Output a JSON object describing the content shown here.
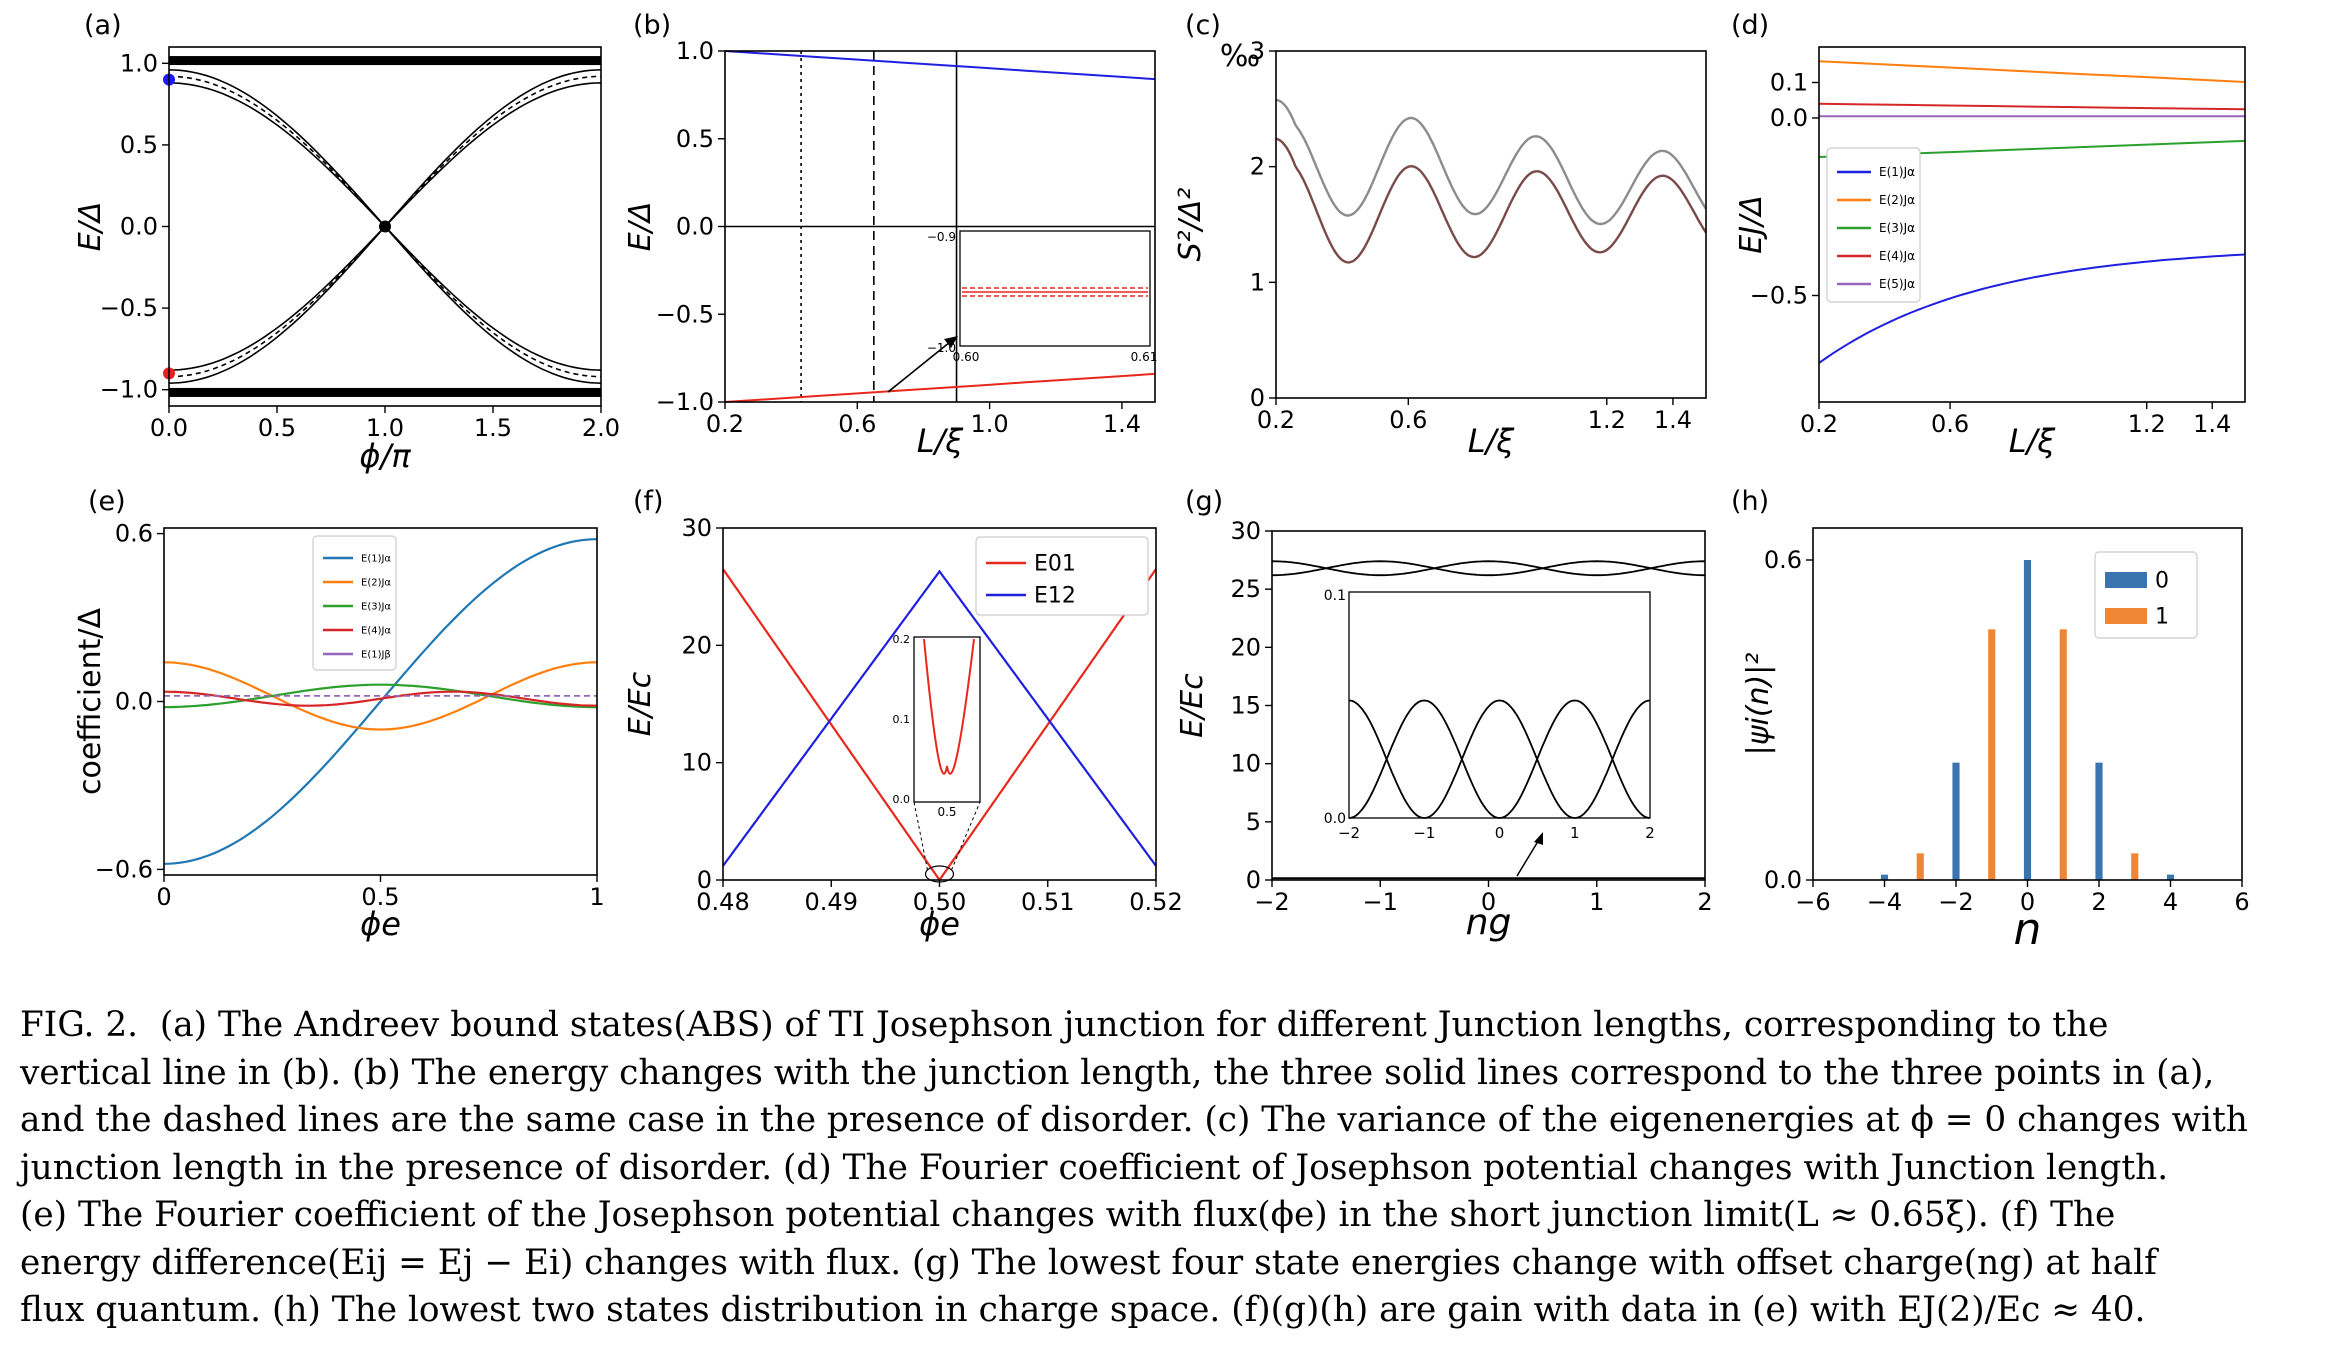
{
  "figure_number": "FIG. 2.",
  "caption_lines": [
    "(a) The Andreev bound states(ABS) of TI Josephson junction for different Junction lengths, corresponding to the",
    "vertical line in (b). (b) The energy changes with the junction length, the three solid lines correspond to the three points in (a),",
    "and the dashed lines are the same case in the presence of disorder. (c) The variance of the eigenenergies at ϕ = 0 changes with",
    "junction length in the presence of disorder. (d) The Fourier coefficient of Josephson potential changes with Junction length.",
    "(e) The Fourier coefficient of the Josephson potential changes with flux(ϕe) in the short junction limit(L ≈ 0.65ξ). (f) The",
    "energy difference(Eij = Ej − Ei) changes with flux. (g) The lowest four state energies change with offset charge(ng) at half",
    "flux quantum. (h) The lowest two states distribution in charge space. (f)(g)(h) are gain with data in (e) with EJ(2)/Ec ≈ 40."
  ],
  "colors": {
    "blue": "#1f1fe0",
    "red": "#e8281c",
    "mpl_blue": "#1f77b4",
    "mpl_orange": "#ff7f0e",
    "mpl_green": "#2ca02c",
    "mpl_red": "#d62728",
    "mpl_purple": "#9467bd",
    "bar_blue": "#3a75b0",
    "bar_orange": "#ef8636",
    "brown": "#7a4a4a",
    "gray": "#8c8c8c"
  },
  "panels": {
    "a": {
      "label": "(a)",
      "xlabel": "ϕ/π",
      "ylabel": "E/Δ",
      "xticks": [
        "0.0",
        "0.5",
        "1.0",
        "1.5",
        "2.0"
      ],
      "yticks": [
        "1.0",
        "0.5",
        "0.0",
        "−0.5",
        "−1.0"
      ]
    },
    "b": {
      "label": "(b)",
      "xlabel": "L/ξ",
      "ylabel": "E/Δ",
      "xticks": [
        "0.2",
        "0.6",
        "1.0",
        "1.4"
      ],
      "yticks": [
        "1.0",
        "0.5",
        "0.0",
        "−0.5",
        "−1.0"
      ],
      "inset_yticks": [
        "−0.9",
        "−1.0"
      ],
      "inset_xticks": [
        "0.60",
        "0.61"
      ]
    },
    "c": {
      "label": "(c)",
      "xlabel": "L/ξ",
      "ylabel": "S²/Δ²",
      "unit": "‰",
      "xticks": [
        "0.2",
        "0.6",
        "1.2",
        "1.4"
      ],
      "yticks": [
        "3",
        "2",
        "1",
        "0"
      ]
    },
    "d": {
      "label": "(d)",
      "xlabel": "L/ξ",
      "ylabel": "EJ/Δ",
      "xticks": [
        "0.2",
        "0.6",
        "1.2",
        "1.4"
      ],
      "yticks": [
        "0.1",
        "0.0",
        "−0.5"
      ],
      "legend": [
        "E(1)Jα",
        "E(2)Jα",
        "E(3)Jα",
        "E(4)Jα",
        "E(5)Jα"
      ]
    },
    "e": {
      "label": "(e)",
      "xlabel": "ϕe",
      "ylabel": "coefficient/Δ",
      "xticks": [
        "0",
        "0.5",
        "1"
      ],
      "yticks": [
        "0.6",
        "0.0",
        "−0.6"
      ],
      "legend": [
        "E(1)Jα",
        "E(2)Jα",
        "E(3)Jα",
        "E(4)Jα",
        "E(1)Jβ"
      ]
    },
    "f": {
      "label": "(f)",
      "xlabel": "ϕe",
      "ylabel": "E/Ec",
      "xticks": [
        "0.48",
        "0.49",
        "0.50",
        "0.51",
        "0.52"
      ],
      "yticks": [
        "30",
        "20",
        "10",
        "0"
      ],
      "legend": [
        "E01",
        "E12"
      ],
      "inset_yticks": [
        "0.2",
        "0.1",
        "0.0"
      ],
      "inset_xticks": [
        "0.5"
      ]
    },
    "g": {
      "label": "(g)",
      "xlabel": "ng",
      "ylabel": "E/Ec",
      "xticks": [
        "−2",
        "−1",
        "0",
        "1",
        "2"
      ],
      "yticks": [
        "30",
        "25",
        "20",
        "15",
        "10",
        "5",
        "0"
      ],
      "inset_yticks": [
        "0.1",
        "0.0"
      ],
      "inset_xticks": [
        "−2",
        "−1",
        "0",
        "1",
        "2"
      ]
    },
    "h": {
      "label": "(h)",
      "xlabel": "n",
      "ylabel": "|ψi(n)|²",
      "xticks": [
        "−6",
        "−4",
        "−2",
        "0",
        "2",
        "4",
        "6"
      ],
      "yticks": [
        "0.6",
        "0.0"
      ],
      "legend": [
        "0",
        "1"
      ]
    }
  },
  "chart_data": [
    {
      "panel": "h",
      "type": "bar",
      "x": [
        -4,
        -3,
        -2,
        -1,
        0,
        1,
        2,
        3,
        4
      ],
      "series": [
        {
          "name": "0",
          "values": [
            0.01,
            0,
            0.22,
            0,
            0.6,
            0,
            0.22,
            0,
            0.01
          ]
        },
        {
          "name": "1",
          "values": [
            0,
            0.05,
            0,
            0.47,
            0,
            0.47,
            0,
            0.05,
            0
          ]
        }
      ],
      "ylim": [
        0,
        0.6
      ],
      "xlim": [
        -6,
        6
      ]
    },
    {
      "panel": "f",
      "type": "line",
      "x": [
        0.48,
        0.5,
        0.52
      ],
      "series": [
        {
          "name": "E01",
          "values": [
            26.5,
            0.05,
            26.5
          ]
        },
        {
          "name": "E12",
          "values": [
            1.2,
            26.3,
            1.2
          ]
        }
      ],
      "ylim": [
        0,
        30
      ],
      "xlim": [
        0.48,
        0.52
      ]
    },
    {
      "panel": "b",
      "type": "line",
      "x": [
        0.2,
        1.5
      ],
      "series": [
        {
          "values": [
            1.0,
            0.84
          ]
        },
        {
          "values": [
            -1.0,
            -0.84
          ]
        }
      ],
      "ylim": [
        -1,
        1
      ],
      "xlim": [
        0.2,
        1.5
      ]
    },
    {
      "panel": "d",
      "type": "line",
      "x": [
        0.2,
        1.5
      ],
      "series": [
        {
          "values": [
            0.16,
            0.1
          ]
        },
        {
          "values": [
            0.04,
            0.02
          ]
        },
        {
          "values": [
            -0.04,
            -0.02
          ]
        },
        {
          "values": [
            -0.11,
            -0.06
          ]
        },
        {
          "values": [
            -0.68,
            -0.36
          ]
        }
      ],
      "xlim": [
        0.2,
        1.5
      ]
    }
  ]
}
